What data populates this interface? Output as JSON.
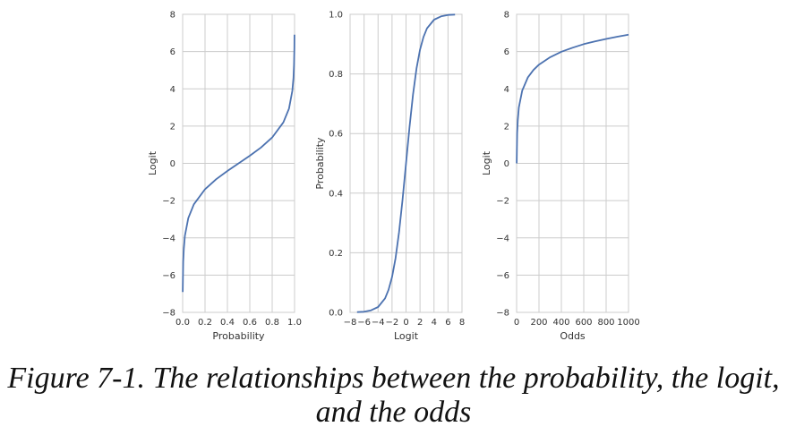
{
  "figure": {
    "caption_label": "Figure 7-1.",
    "caption_text": "The relationships between the probability, the logit, and the odds"
  },
  "colors": {
    "line": "#4c72b0",
    "grid": "#cccccc",
    "axis": "#555555",
    "text": "#333333"
  },
  "chart_data": [
    {
      "type": "line",
      "xlabel": "Probability",
      "ylabel": "Logit",
      "xlim": [
        0.0,
        1.0
      ],
      "ylim": [
        -8,
        8
      ],
      "xticks": [
        0.0,
        0.2,
        0.4,
        0.6,
        0.8,
        1.0
      ],
      "xtick_labels": [
        "0.0",
        "0.2",
        "0.4",
        "0.6",
        "0.8",
        "1.0"
      ],
      "yticks": [
        -8,
        -6,
        -4,
        -2,
        0,
        2,
        4,
        6,
        8
      ],
      "ytick_labels": [
        "−8",
        "−6",
        "−4",
        "−2",
        "0",
        "2",
        "4",
        "6",
        "8"
      ],
      "grid": true,
      "series": [
        {
          "x": [
            0.001,
            0.002,
            0.005,
            0.01,
            0.02,
            0.05,
            0.1,
            0.2,
            0.3,
            0.4,
            0.5,
            0.6,
            0.7,
            0.8,
            0.9,
            0.95,
            0.98,
            0.99,
            0.995,
            0.998,
            0.999
          ],
          "y": [
            -6.91,
            -6.21,
            -5.29,
            -4.6,
            -3.89,
            -2.94,
            -2.2,
            -1.39,
            -0.85,
            -0.41,
            0.0,
            0.41,
            0.85,
            1.39,
            2.2,
            2.94,
            3.89,
            4.6,
            5.29,
            6.21,
            6.91
          ]
        }
      ]
    },
    {
      "type": "line",
      "xlabel": "Logit",
      "ylabel": "Probability",
      "xlim": [
        -8,
        8
      ],
      "ylim": [
        0.0,
        1.0
      ],
      "xticks": [
        -8,
        -6,
        -4,
        -2,
        0,
        2,
        4,
        6,
        8
      ],
      "xtick_labels": [
        "−8",
        "−6",
        "−4",
        "−2",
        "0",
        "2",
        "4",
        "6",
        "8"
      ],
      "yticks": [
        0.0,
        0.2,
        0.4,
        0.6,
        0.8,
        1.0
      ],
      "ytick_labels": [
        "0.0",
        "0.2",
        "0.4",
        "0.6",
        "0.8",
        "1.0"
      ],
      "grid": true,
      "series": [
        {
          "x": [
            -7,
            -6,
            -5,
            -4,
            -3,
            -2.5,
            -2,
            -1.5,
            -1,
            -0.5,
            0,
            0.5,
            1,
            1.5,
            2,
            2.5,
            3,
            4,
            5,
            6,
            7
          ],
          "y": [
            0.001,
            0.002,
            0.007,
            0.018,
            0.047,
            0.076,
            0.119,
            0.182,
            0.269,
            0.378,
            0.5,
            0.622,
            0.731,
            0.818,
            0.881,
            0.924,
            0.953,
            0.982,
            0.993,
            0.998,
            0.999
          ]
        }
      ]
    },
    {
      "type": "line",
      "xlabel": "Odds",
      "ylabel": "Logit",
      "xlim": [
        0,
        1000
      ],
      "ylim": [
        -8,
        8
      ],
      "xticks": [
        0,
        200,
        400,
        600,
        800,
        1000
      ],
      "xtick_labels": [
        "0",
        "200",
        "400",
        "600",
        "800",
        "1000"
      ],
      "yticks": [
        -8,
        -6,
        -4,
        -2,
        0,
        2,
        4,
        6,
        8
      ],
      "ytick_labels": [
        "−8",
        "−6",
        "−4",
        "−2",
        "0",
        "2",
        "4",
        "6",
        "8"
      ],
      "grid": true,
      "series": [
        {
          "x": [
            1,
            2,
            5,
            10,
            20,
            50,
            100,
            150,
            200,
            300,
            400,
            500,
            600,
            700,
            800,
            900,
            1000
          ],
          "y": [
            0.0,
            0.69,
            1.61,
            2.3,
            3.0,
            3.91,
            4.61,
            5.01,
            5.3,
            5.7,
            5.99,
            6.21,
            6.4,
            6.55,
            6.68,
            6.8,
            6.91
          ]
        }
      ]
    }
  ]
}
